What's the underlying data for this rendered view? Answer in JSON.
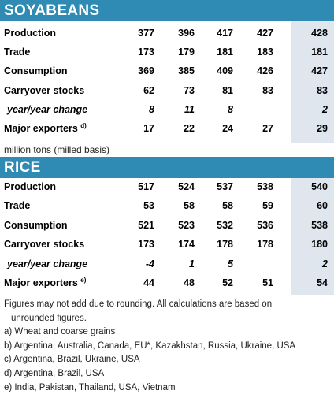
{
  "soybeans": {
    "title": "SOYABEANS",
    "rows": [
      {
        "label": "Production",
        "values": [
          "377",
          "396",
          "417",
          "427",
          "428"
        ],
        "italic": false
      },
      {
        "label": "Trade",
        "values": [
          "173",
          "179",
          "181",
          "183",
          "181"
        ],
        "italic": false
      },
      {
        "label": "Consumption",
        "values": [
          "369",
          "385",
          "409",
          "426",
          "427"
        ],
        "italic": false
      },
      {
        "label": "Carryover stocks",
        "values": [
          "62",
          "73",
          "81",
          "83",
          "83"
        ],
        "italic": false
      },
      {
        "label": "year/year change",
        "values": [
          "8",
          "11",
          "8",
          "",
          "2"
        ],
        "italic": true
      },
      {
        "label": "Major exporters",
        "sup": "d)",
        "values": [
          "17",
          "22",
          "24",
          "27",
          "29"
        ],
        "italic": false
      }
    ]
  },
  "unit_note": "million tons (milled basis)",
  "rice": {
    "title": "RICE",
    "rows": [
      {
        "label": "Production",
        "values": [
          "517",
          "524",
          "537",
          "538",
          "540"
        ],
        "italic": false
      },
      {
        "label": "Trade",
        "values": [
          "53",
          "58",
          "58",
          "59",
          "60"
        ],
        "italic": false
      },
      {
        "label": "Consumption",
        "values": [
          "521",
          "523",
          "532",
          "536",
          "538"
        ],
        "italic": false
      },
      {
        "label": "Carryover stocks",
        "values": [
          "173",
          "174",
          "178",
          "178",
          "180"
        ],
        "italic": false
      },
      {
        "label": "year/year change",
        "values": [
          "-4",
          "1",
          "5",
          "",
          "2"
        ],
        "italic": true
      },
      {
        "label": "Major exporters",
        "sup": "e)",
        "values": [
          "44",
          "48",
          "52",
          "51",
          "54"
        ],
        "italic": false
      }
    ]
  },
  "footnotes": {
    "rounding_line1": "Figures may not add due to rounding. All calculations are based on",
    "rounding_line2": "unrounded figures.",
    "a": "a) Wheat and coarse grains",
    "b": "b) Argentina, Australia, Canada, EU*, Kazakhstan, Russia, Ukraine, USA",
    "c": "c) Argentina, Brazil, Ukraine, USA",
    "d": "d) Argentina, Brazil, USA",
    "e": "e) India, Pakistan, Thailand, USA, Vietnam"
  }
}
